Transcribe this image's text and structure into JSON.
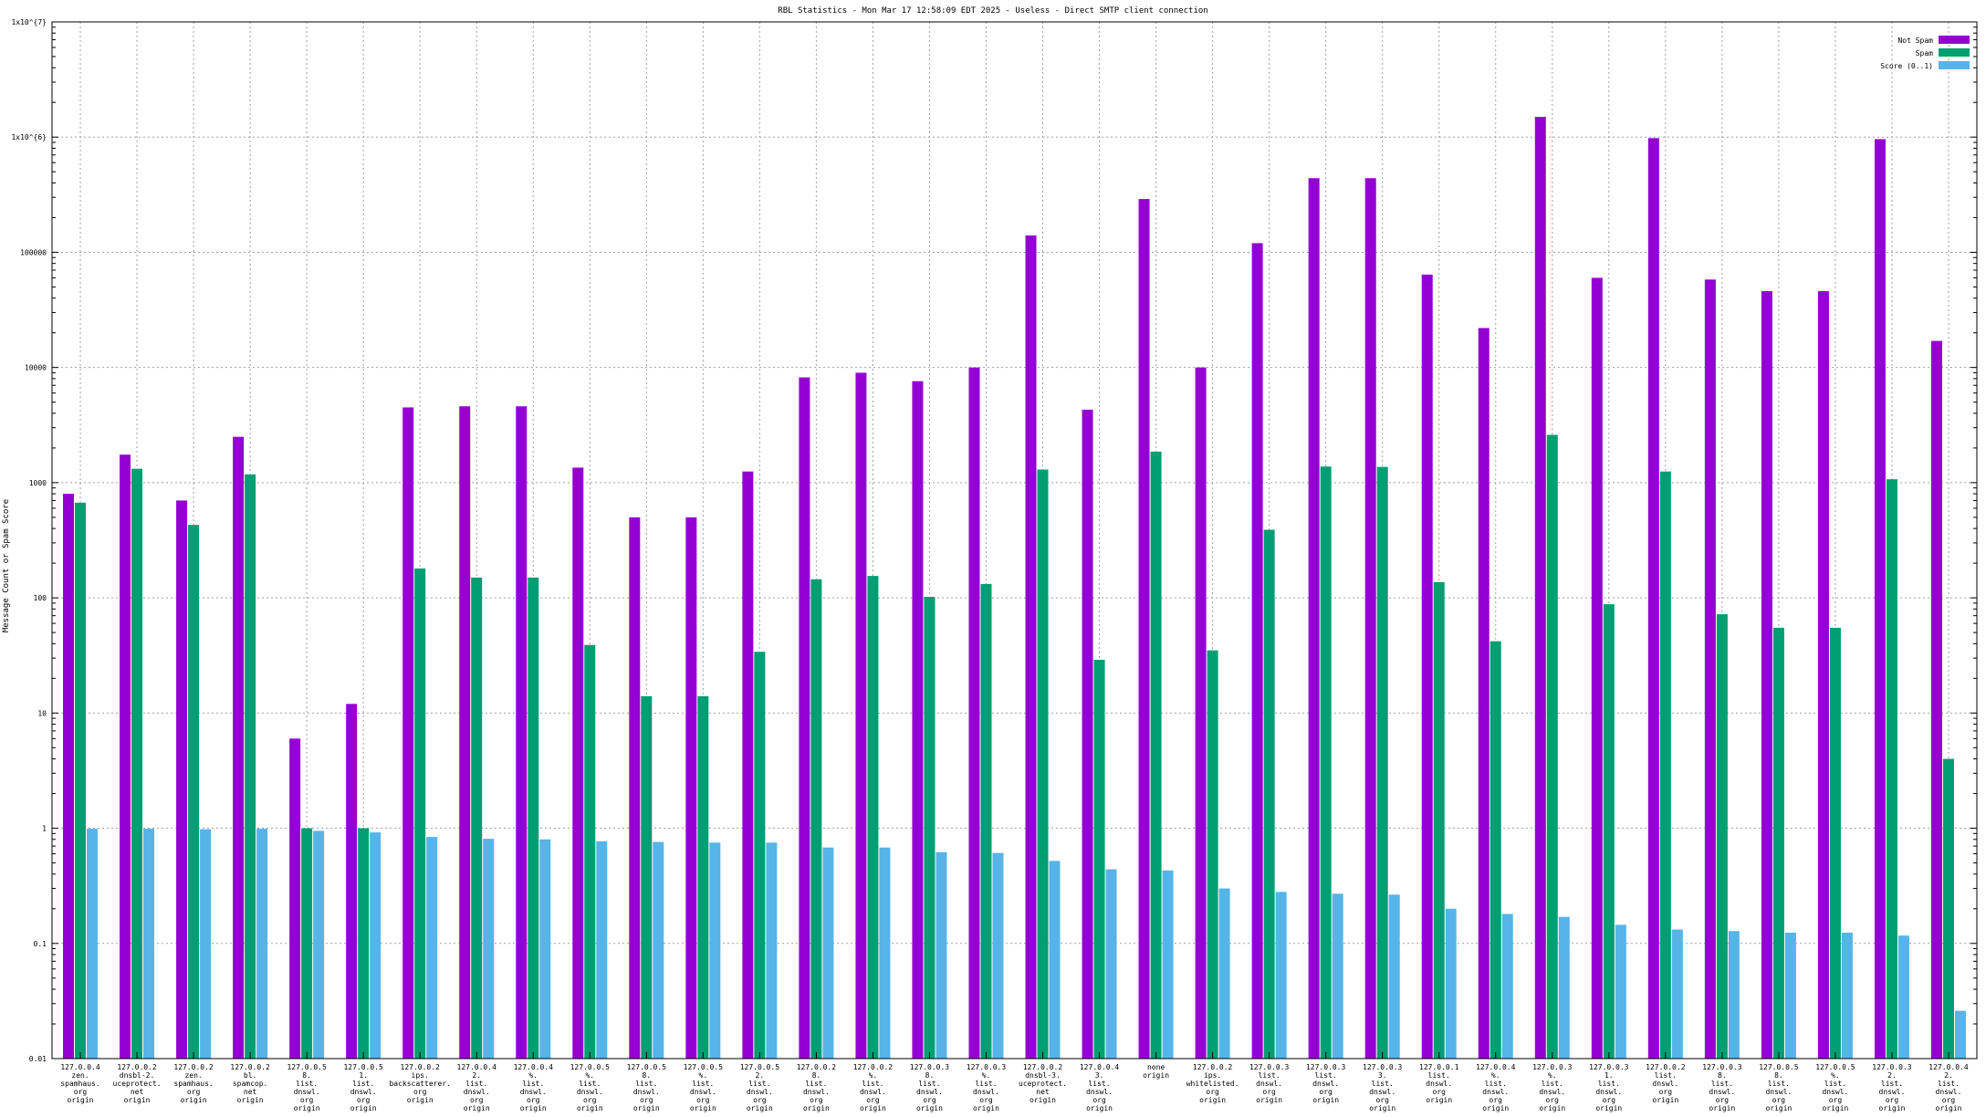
{
  "chart_data": {
    "type": "bar",
    "title": "RBL Statistics - Mon Mar 17 12:58:09 EDT 2025 - Useless - Direct SMTP client connection",
    "ylabel": "Message Count or Spam Score",
    "xlabel": "",
    "yscale": "log",
    "ylim": [
      0.01,
      10000000
    ],
    "yticks": [
      {
        "value": 10000000,
        "label": "1x10^{7}"
      },
      {
        "value": 1000000,
        "label": "1x10^{6}"
      },
      {
        "value": 100000,
        "label": "100000"
      },
      {
        "value": 10000,
        "label": "10000"
      },
      {
        "value": 1000,
        "label": "1000"
      },
      {
        "value": 100,
        "label": "100"
      },
      {
        "value": 10,
        "label": "10"
      },
      {
        "value": 1,
        "label": "1"
      },
      {
        "value": 0.1,
        "label": "0.1"
      },
      {
        "value": 0.01,
        "label": "0.01"
      }
    ],
    "grid": true,
    "legend_position": "top-right",
    "categories": [
      [
        "127.0.0.4",
        "zen.",
        "spamhaus.",
        "org",
        "origin"
      ],
      [
        "127.0.0.2",
        "dnsbl-2.",
        "uceprotect.",
        "net",
        "origin"
      ],
      [
        "127.0.0.2",
        "zen.",
        "spamhaus.",
        "org",
        "origin"
      ],
      [
        "127.0.0.2",
        "bl.",
        "spamcop.",
        "net",
        "origin"
      ],
      [
        "127.0.0.5",
        "8.",
        "list.",
        "dnswl.",
        "org",
        "origin"
      ],
      [
        "127.0.0.5",
        "1.",
        "list.",
        "dnswl.",
        "org",
        "origin"
      ],
      [
        "127.0.0.2",
        "ips.",
        "backscatterer.",
        "org",
        "origin"
      ],
      [
        "127.0.0.4",
        "2.",
        "list.",
        "dnswl.",
        "org",
        "origin"
      ],
      [
        "127.0.0.4",
        "%.",
        "list.",
        "dnswl.",
        "org",
        "origin"
      ],
      [
        "127.0.0.5",
        "%.",
        "list.",
        "dnswl.",
        "org",
        "origin"
      ],
      [
        "127.0.0.5",
        "8.",
        "list.",
        "dnswl.",
        "org",
        "origin"
      ],
      [
        "127.0.0.5",
        "%.",
        "list.",
        "dnswl.",
        "org",
        "origin"
      ],
      [
        "127.0.0.5",
        "2.",
        "list.",
        "dnswl.",
        "org",
        "origin"
      ],
      [
        "127.0.0.2",
        "8.",
        "list.",
        "dnswl.",
        "org",
        "origin"
      ],
      [
        "127.0.0.2",
        "%.",
        "list.",
        "dnswl.",
        "org",
        "origin"
      ],
      [
        "127.0.0.3",
        "8.",
        "list.",
        "dnswl.",
        "org",
        "origin"
      ],
      [
        "127.0.0.3",
        "%.",
        "list.",
        "dnswl.",
        "org",
        "origin"
      ],
      [
        "127.0.0.2",
        "dnsbl-3.",
        "uceprotect.",
        "net",
        "origin"
      ],
      [
        "127.0.0.4",
        "3.",
        "list.",
        "dnswl.",
        "org",
        "origin"
      ],
      [
        "none",
        "origin"
      ],
      [
        "127.0.0.2",
        "ips.",
        "whitelisted.",
        "org",
        "origin"
      ],
      [
        "127.0.0.3",
        "list.",
        "dnswl.",
        "org",
        "origin"
      ],
      [
        "127.0.0.3",
        "list.",
        "dnswl.",
        "org",
        "origin"
      ],
      [
        "127.0.0.3",
        "3.",
        "list.",
        "dnswl.",
        "org",
        "origin"
      ],
      [
        "127.0.0.1",
        "list.",
        "dnswl.",
        "org",
        "origin"
      ],
      [
        "127.0.0.4",
        "%.",
        "list.",
        "dnswl.",
        "org",
        "origin"
      ],
      [
        "127.0.0.3",
        "%.",
        "list.",
        "dnswl.",
        "org",
        "origin"
      ],
      [
        "127.0.0.3",
        "1.",
        "list.",
        "dnswl.",
        "org",
        "origin"
      ],
      [
        "127.0.0.2",
        "list.",
        "dnswl.",
        "org",
        "origin"
      ],
      [
        "127.0.0.3",
        "8.",
        "list.",
        "dnswl.",
        "org",
        "origin"
      ],
      [
        "127.0.0.5",
        "8.",
        "list.",
        "dnswl.",
        "org",
        "origin"
      ],
      [
        "127.0.0.5",
        "%.",
        "list.",
        "dnswl.",
        "org",
        "origin"
      ],
      [
        "127.0.0.3",
        "2.",
        "list.",
        "dnswl.",
        "org",
        "origin"
      ],
      [
        "127.0.0.4",
        "2.",
        "list.",
        "dnswl.",
        "org",
        "origin"
      ]
    ],
    "series": [
      {
        "name": "Not Spam",
        "color": "#9400d3",
        "values": [
          800,
          1750,
          700,
          2500,
          6,
          12,
          4500,
          4600,
          4600,
          1350,
          500,
          500,
          1250,
          8200,
          9000,
          7600,
          10000,
          140000,
          4300,
          290000,
          10000,
          120000,
          440000,
          440000,
          64000,
          22000,
          1500000,
          60000,
          980000,
          58000,
          46000,
          46000,
          960000,
          17000
        ]
      },
      {
        "name": "Spam",
        "color": "#009e73",
        "values": [
          670,
          1320,
          430,
          1180,
          1,
          1,
          180,
          150,
          150,
          39,
          14,
          14,
          34,
          145,
          155,
          102,
          132,
          1300,
          29,
          1860,
          35,
          390,
          1380,
          1370,
          137,
          42,
          2600,
          88,
          1250,
          72,
          55,
          55,
          1070,
          4
        ]
      },
      {
        "name": "Score (0..1)",
        "color": "#56b4e9",
        "values": [
          0.99,
          0.99,
          0.98,
          0.99,
          0.95,
          0.92,
          0.84,
          0.81,
          0.8,
          0.77,
          0.76,
          0.75,
          0.75,
          0.68,
          0.68,
          0.62,
          0.61,
          0.52,
          0.44,
          0.43,
          0.3,
          0.28,
          0.27,
          0.265,
          0.2,
          0.18,
          0.17,
          0.145,
          0.132,
          0.128,
          0.124,
          0.124,
          0.117,
          0.026
        ]
      }
    ]
  }
}
